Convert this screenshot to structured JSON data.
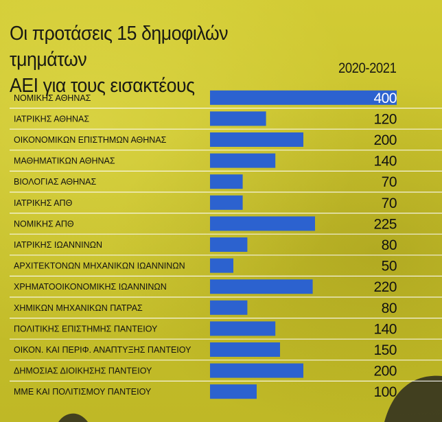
{
  "header": {
    "title_line1": "Οι προτάσεις 15 δημοφιλών τμημάτων",
    "title_line2": "ΑΕΙ για τους εισακτέους",
    "period": "2020-2021"
  },
  "colors": {
    "background": "#c9c32a",
    "bar": "#2c62cf",
    "separator": "#ffffff",
    "text": "#111111"
  },
  "chart_data": {
    "type": "bar",
    "orientation": "horizontal",
    "title": "Οι προτάσεις 15 δημοφιλών τμημάτων ΑΕΙ για τους εισακτέους",
    "subtitle": "2020-2021",
    "categories": [
      "ΝΟΜΙΚΗΣ ΑΘΗΝΑΣ",
      "ΙΑΤΡΙΚΗΣ ΑΘΗΝΑΣ",
      "ΟΙΚΟΝΟΜΙΚΩΝ ΕΠΙΣΤΗΜΩΝ ΑΘΗΝΑΣ",
      "ΜΑΘΗΜΑΤΙΚΩΝ ΑΘΗΝΑΣ",
      "ΒΙΟΛΟΓΙΑΣ ΑΘΗΝΑΣ",
      "ΙΑΤΡΙΚΗΣ ΑΠΘ",
      "ΝΟΜΙΚΗΣ ΑΠΘ",
      "ΙΑΤΡΙΚΗΣ ΙΩΑΝΝΙΝΩΝ",
      "ΑΡΧΙΤΕΚΤΟΝΩΝ ΜΗΧΑΝΙΚΩΝ ΙΩΑΝΝΙΝΩΝ",
      "ΧΡΗΜΑΤΟΟΙΚΟΝΟΜΙΚΗΣ ΙΩΑΝΝΙΝΩΝ",
      "ΧΗΜΙΚΩΝ ΜΗΧΑΝΙΚΩΝ ΠΑΤΡΑΣ",
      "ΠΟΛΙΤΙΚΗΣ ΕΠΙΣΤΗΜΗΣ ΠΑΝΤΕΙΟΥ",
      "ΟΙΚΟΝ. ΚΑΙ ΠΕΡΙΦ. ΑΝΑΠΤΥΞΗΣ ΠΑΝΤΕΙΟΥ",
      "ΔΗΜΟΣΙΑΣ ΔΙΟΙΚΗΣΗΣ ΠΑΝΤΕΙΟΥ",
      "ΜΜΕ ΚΑΙ ΠΟΛΙΤΙΣΜΟΥ ΠΑΝΤΕΙΟΥ"
    ],
    "values": [
      400,
      120,
      200,
      140,
      70,
      70,
      225,
      80,
      50,
      220,
      80,
      140,
      150,
      200,
      100
    ],
    "value_labels": [
      "400",
      "120",
      "200",
      "140",
      "70",
      "70",
      "225",
      "80",
      "50",
      "220",
      "80",
      "140",
      "150",
      "200",
      "100"
    ],
    "xlim": [
      0,
      400
    ],
    "grid": false,
    "legend": "none"
  }
}
